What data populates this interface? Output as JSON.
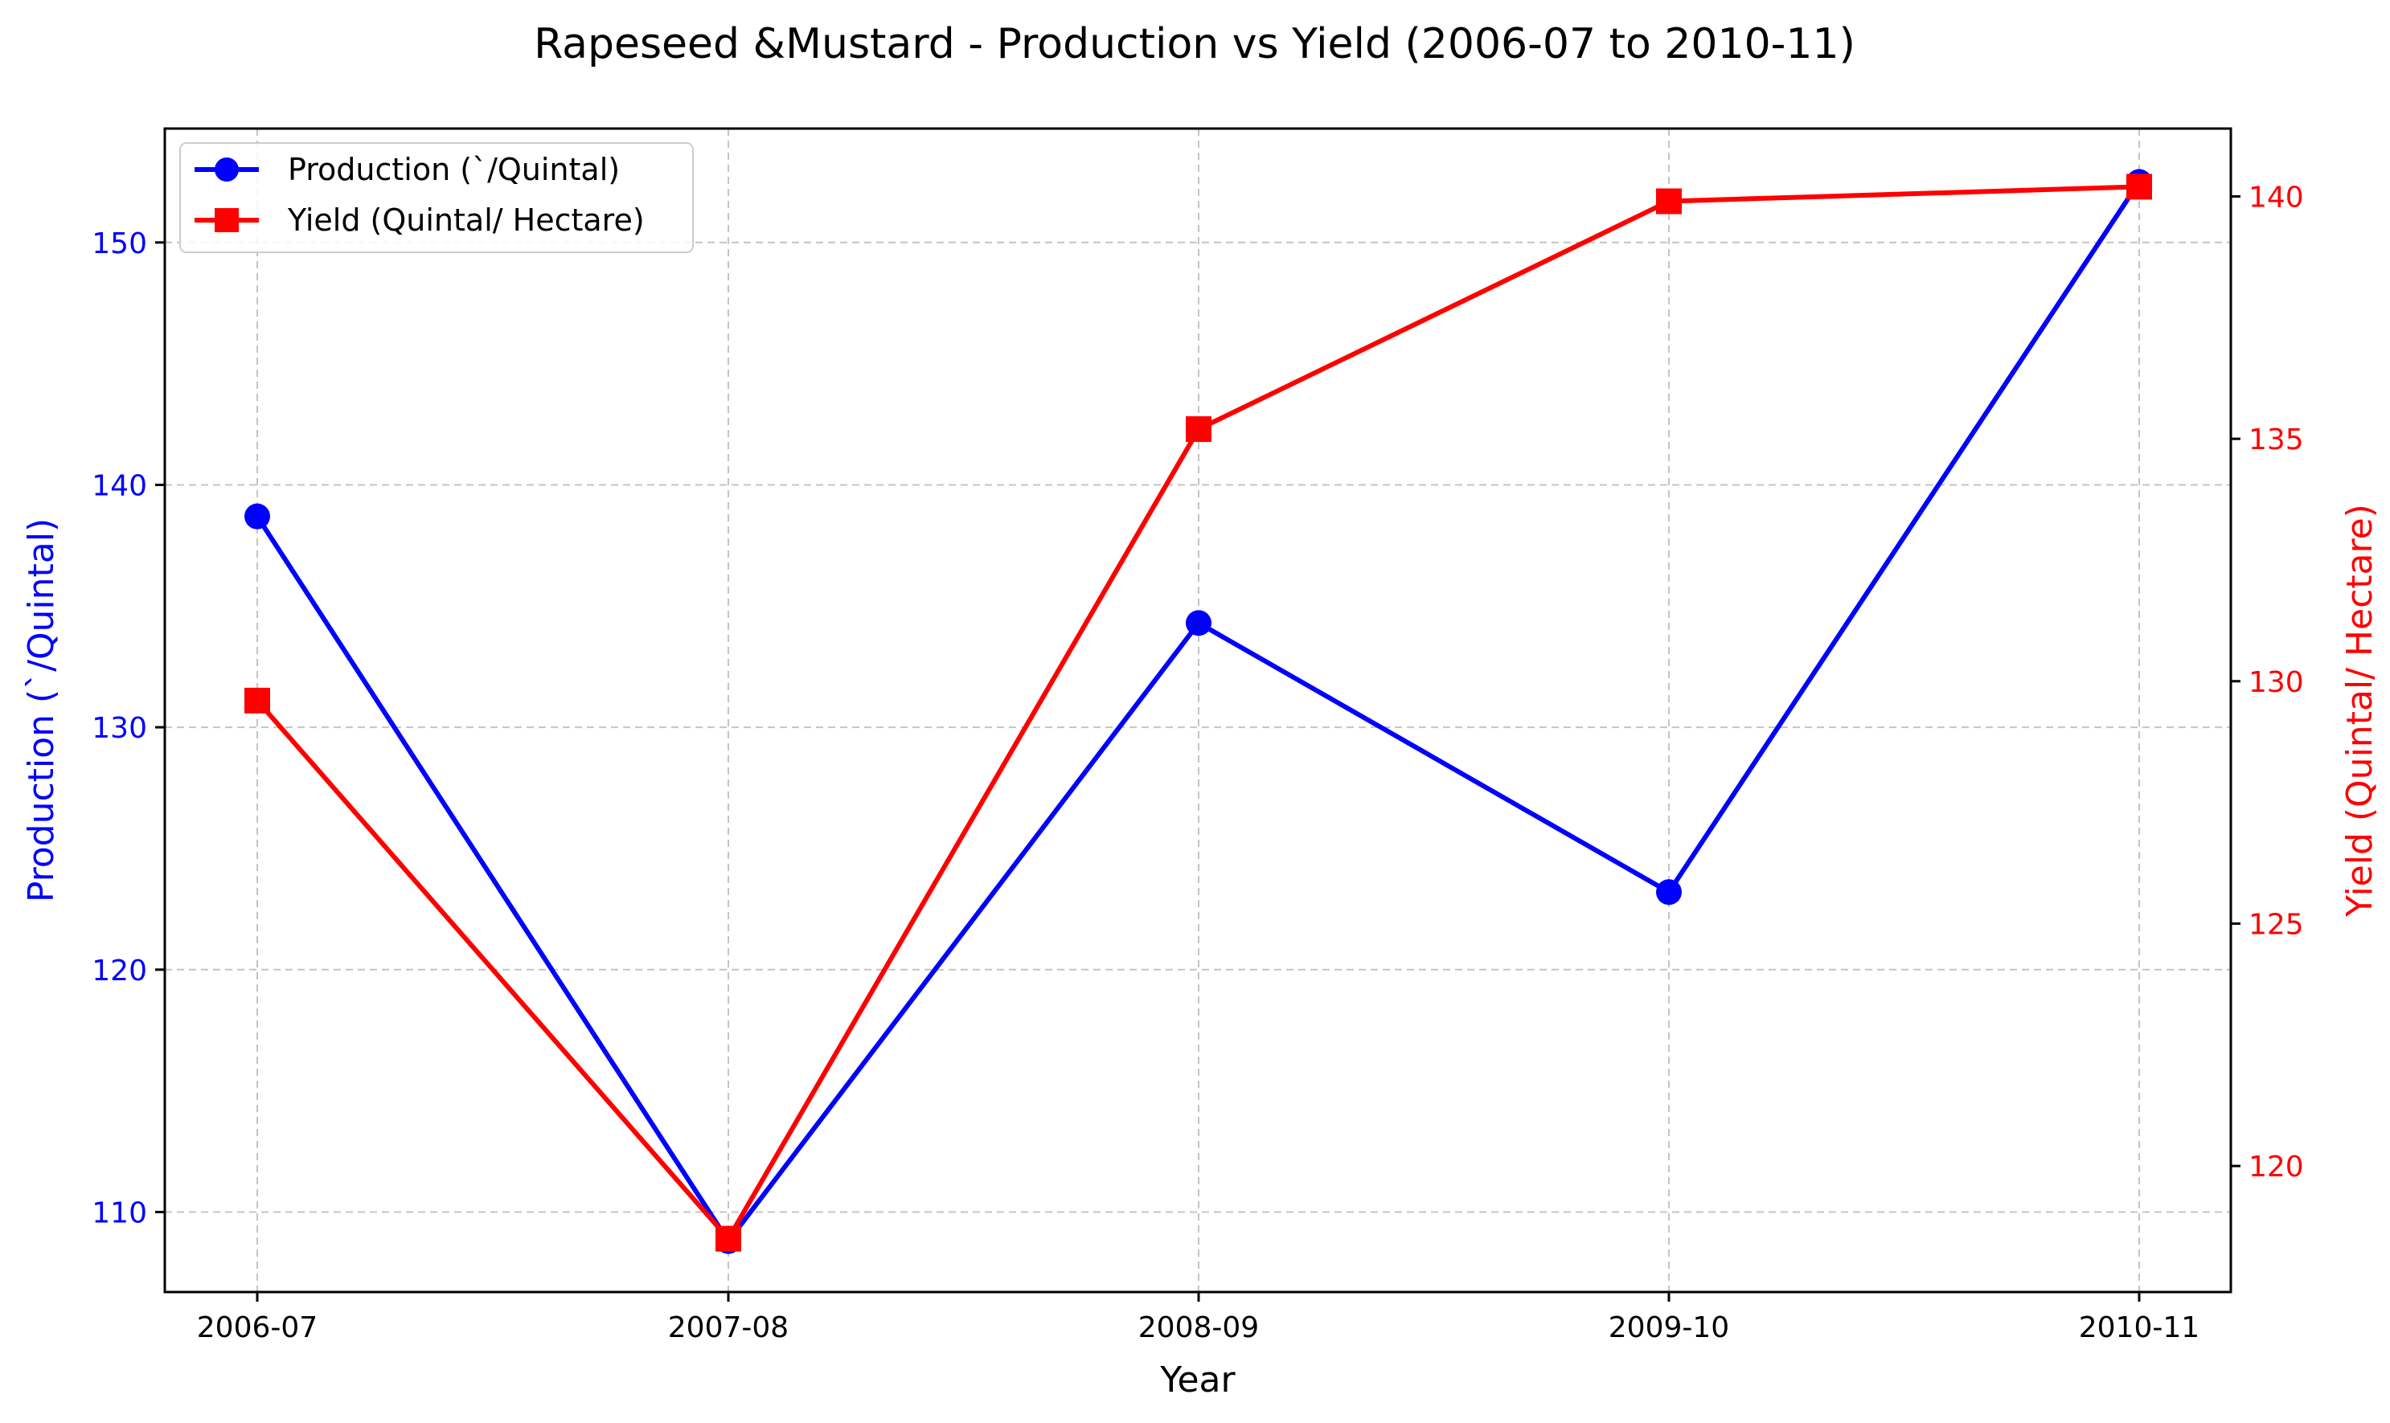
{
  "chart_data": {
    "type": "line",
    "title": "Rapeseed &Mustard - Production vs Yield (2006-07 to 2010-11)",
    "xlabel": "Year",
    "categories": [
      "2006-07",
      "2007-08",
      "2008-09",
      "2009-10",
      "2010-11"
    ],
    "y_left": {
      "label": "Production (`/Quintal)",
      "range": [
        106.7,
        154.7
      ],
      "ticks": [
        110,
        120,
        130,
        140,
        150
      ],
      "color": "#0000ff"
    },
    "y_right": {
      "label": "Yield (Quintal/ Hectare)",
      "range": [
        117.4,
        141.4
      ],
      "ticks": [
        120,
        125,
        130,
        135,
        140
      ],
      "color": "#ff0000"
    },
    "series": [
      {
        "name": "Production (`/Quintal)",
        "axis": "left",
        "color": "#0000ff",
        "marker": "circle",
        "values": [
          138.7,
          108.8,
          134.3,
          123.2,
          152.5
        ]
      },
      {
        "name": "Yield (Quintal/ Hectare)",
        "axis": "right",
        "color": "#ff0000",
        "marker": "square",
        "values": [
          129.6,
          118.5,
          135.2,
          139.9,
          140.2
        ]
      }
    ],
    "grid": true,
    "legend_position": "top-left"
  }
}
